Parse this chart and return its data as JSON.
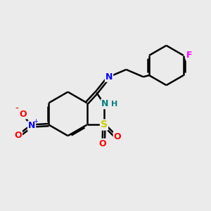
{
  "bg_color": "#ebebeb",
  "bond_color": "#000000",
  "bond_width": 1.8,
  "atom_colors": {
    "N": "#0000ff",
    "O": "#ff0000",
    "S": "#cccc00",
    "F": "#ff00ff",
    "NH": "#008080",
    "C": "#000000"
  },
  "font_size": 9,
  "fig_size": [
    3.0,
    3.0
  ],
  "dpi": 100
}
